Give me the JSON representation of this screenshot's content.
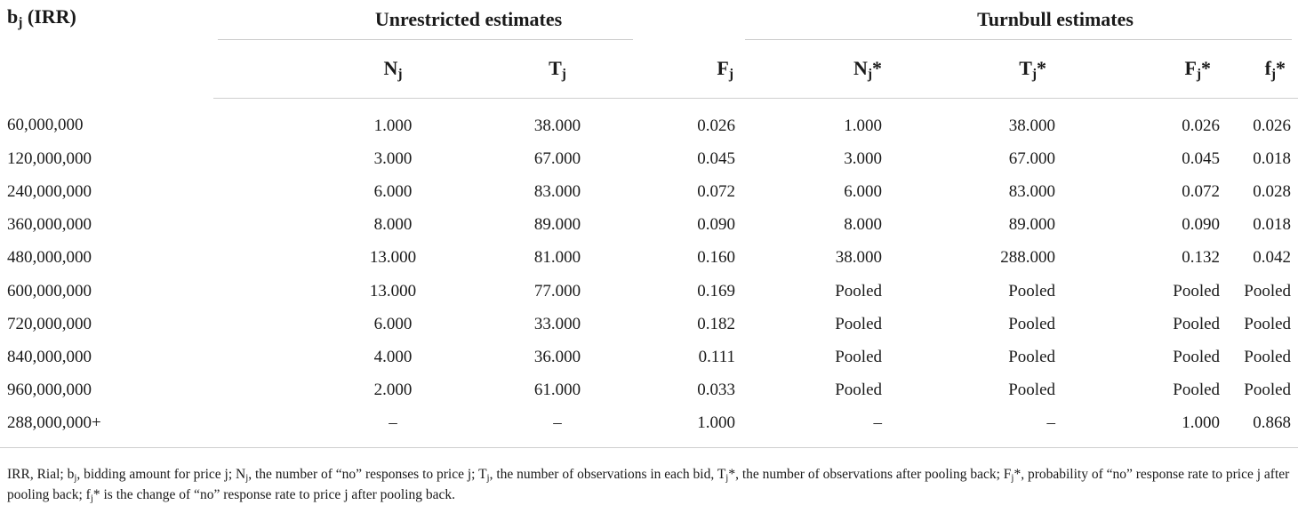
{
  "header": {
    "stub": {
      "base": "b",
      "sub": "j",
      "suffix": " (IRR)"
    },
    "group_unrestricted": "Unrestricted estimates",
    "group_turnbull": "Turnbull estimates",
    "columns": [
      {
        "base": "N",
        "sub": "j",
        "suffix": ""
      },
      {
        "base": "T",
        "sub": "j",
        "suffix": ""
      },
      {
        "base": "F",
        "sub": "j",
        "suffix": ""
      },
      {
        "base": "N",
        "sub": "j",
        "suffix": "*"
      },
      {
        "base": "T",
        "sub": "j",
        "suffix": "*"
      },
      {
        "base": "F",
        "sub": "j",
        "suffix": "*"
      },
      {
        "base": "f",
        "sub": "j",
        "suffix": "*"
      }
    ]
  },
  "rows": [
    [
      "60,000,000",
      "1.000",
      "38.000",
      "0.026",
      "1.000",
      "38.000",
      "0.026",
      "0.026"
    ],
    [
      "120,000,000",
      "3.000",
      "67.000",
      "0.045",
      "3.000",
      "67.000",
      "0.045",
      "0.018"
    ],
    [
      "240,000,000",
      "6.000",
      "83.000",
      "0.072",
      "6.000",
      "83.000",
      "0.072",
      "0.028"
    ],
    [
      "360,000,000",
      "8.000",
      "89.000",
      "0.090",
      "8.000",
      "89.000",
      "0.090",
      "0.018"
    ],
    [
      "480,000,000",
      "13.000",
      "81.000",
      "0.160",
      "38.000",
      "288.000",
      "0.132",
      "0.042"
    ],
    [
      "600,000,000",
      "13.000",
      "77.000",
      "0.169",
      "Pooled",
      "Pooled",
      "Pooled",
      "Pooled"
    ],
    [
      "720,000,000",
      "6.000",
      "33.000",
      "0.182",
      "Pooled",
      "Pooled",
      "Pooled",
      "Pooled"
    ],
    [
      "840,000,000",
      "4.000",
      "36.000",
      "0.111",
      "Pooled",
      "Pooled",
      "Pooled",
      "Pooled"
    ],
    [
      "960,000,000",
      "2.000",
      "61.000",
      "0.033",
      "Pooled",
      "Pooled",
      "Pooled",
      "Pooled"
    ],
    [
      "288,000,000+",
      "–",
      "–",
      "1.000",
      "–",
      "–",
      "1.000",
      "0.868"
    ]
  ],
  "footnote": [
    {
      "t": "IRR, Rial; b"
    },
    {
      "s": "j"
    },
    {
      "t": ", bidding amount for price j; N"
    },
    {
      "s": "j"
    },
    {
      "t": ", the number of “no” responses to price j; T"
    },
    {
      "s": "j"
    },
    {
      "t": ", the number of observations in each bid, T"
    },
    {
      "s": "j"
    },
    {
      "t": "*, the number of observations after pooling back; F"
    },
    {
      "s": "j"
    },
    {
      "t": "*, probability of “no” response rate to price j after pooling back; f"
    },
    {
      "s": "j"
    },
    {
      "t": "* is the change of “no” response rate to price j after pooling back."
    }
  ]
}
